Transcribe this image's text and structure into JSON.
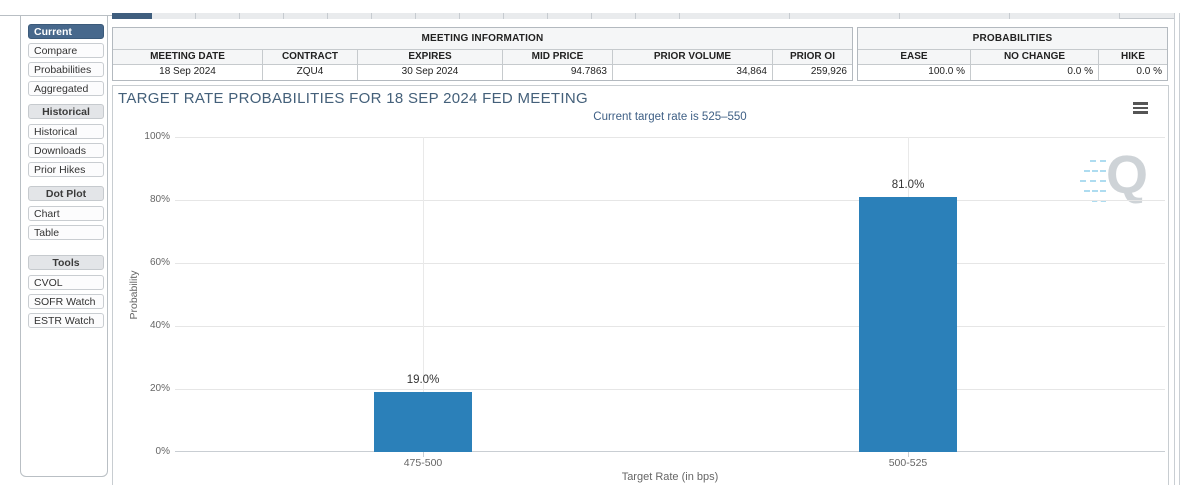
{
  "top_tabs": {
    "count": 17,
    "selected_index": 0
  },
  "sidebar": {
    "selected": "Current",
    "items": [
      {
        "label": "Current",
        "type": "selected"
      },
      {
        "label": "Compare",
        "type": "item"
      },
      {
        "label": "Probabilities",
        "type": "item"
      },
      {
        "label": "Aggregated",
        "type": "item"
      },
      {
        "label": "Historical",
        "type": "header"
      },
      {
        "label": "Historical",
        "type": "item"
      },
      {
        "label": "Downloads",
        "type": "item"
      },
      {
        "label": "Prior Hikes",
        "type": "item"
      },
      {
        "label": "Dot Plot",
        "type": "header"
      },
      {
        "label": "Chart",
        "type": "item"
      },
      {
        "label": "Table",
        "type": "item"
      },
      {
        "label": "Tools",
        "type": "header"
      },
      {
        "label": "CVOL",
        "type": "item"
      },
      {
        "label": "SOFR Watch",
        "type": "item"
      },
      {
        "label": "ESTR Watch",
        "type": "item"
      }
    ]
  },
  "meeting_info": {
    "title": "MEETING INFORMATION",
    "headers": [
      "MEETING DATE",
      "CONTRACT",
      "EXPIRES",
      "MID PRICE",
      "PRIOR VOLUME",
      "PRIOR OI"
    ],
    "values": [
      "18 Sep 2024",
      "ZQU4",
      "30 Sep 2024",
      "94.7863",
      "34,864",
      "259,926"
    ]
  },
  "probabilities": {
    "title": "PROBABILITIES",
    "headers": [
      "EASE",
      "NO CHANGE",
      "HIKE"
    ],
    "values": [
      "100.0 %",
      "0.0 %",
      "0.0 %"
    ]
  },
  "chart": {
    "menu_icon": "hamburger-icon",
    "watermark_letter": "Q",
    "bar_color": "#2b80b9"
  },
  "chart_data": {
    "type": "bar",
    "title": "TARGET RATE PROBABILITIES FOR 18 SEP 2024 FED MEETING",
    "subtitle": "Current target rate is 525–550",
    "categories": [
      "475-500",
      "500-525"
    ],
    "values": [
      19.0,
      81.0
    ],
    "value_labels": [
      "19.0%",
      "81.0%"
    ],
    "xlabel": "Target Rate (in bps)",
    "ylabel": "Probability",
    "ylim": [
      0,
      100
    ],
    "yticks": [
      "0%",
      "20%",
      "40%",
      "60%",
      "80%",
      "100%"
    ],
    "grid": true,
    "legend": "none"
  }
}
